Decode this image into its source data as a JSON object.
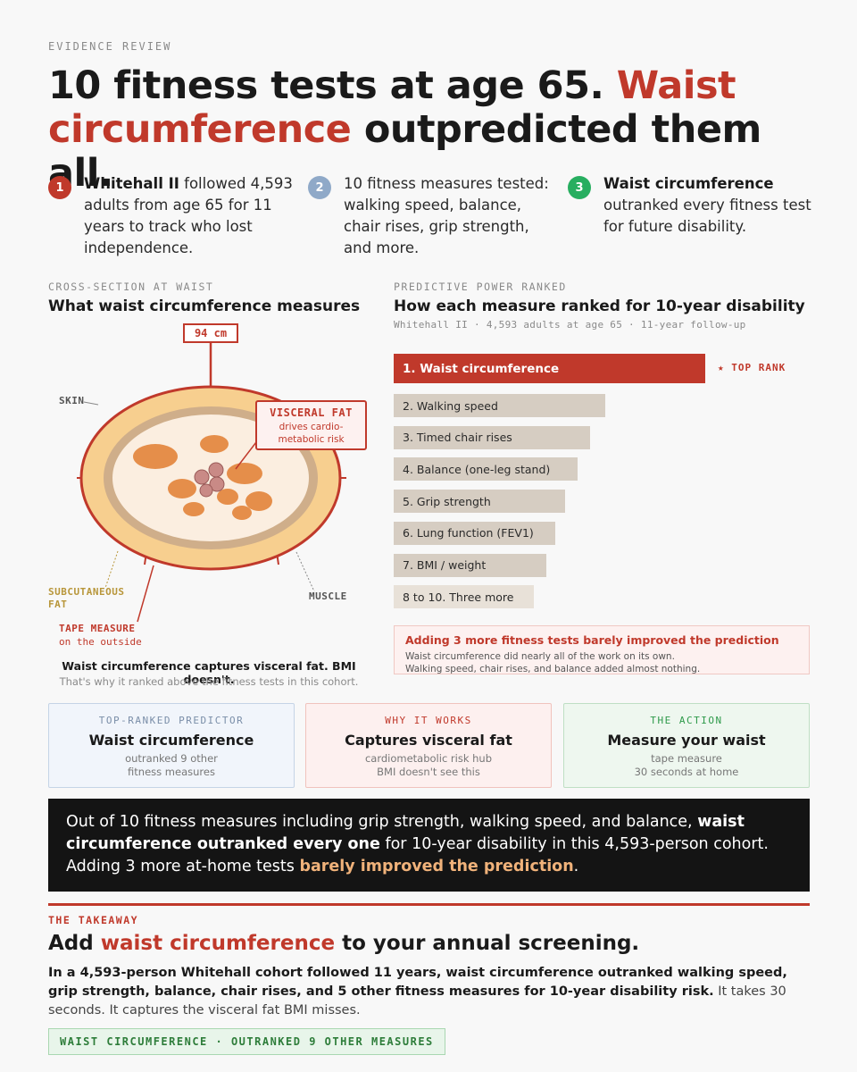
{
  "kicker": "EVIDENCE REVIEW",
  "headline": {
    "part1": "10 fitness tests at age 65. ",
    "red": "Waist circumference",
    "part2": " outpredicted them all."
  },
  "steps": [
    {
      "num": "1",
      "bold": "Whitehall II",
      "text": " followed 4,593 adults from age 65 for 11 years to track who lost independence.",
      "color": "#c0392b"
    },
    {
      "num": "2",
      "bold": "",
      "text": "10 fitness measures tested: walking speed, balance, chair rises, grip strength, and more.",
      "color": "#8fa9c8"
    },
    {
      "num": "3",
      "bold": "Waist circumference",
      "text": " outranked every fitness test for future disability.",
      "color": "#27ae60"
    }
  ],
  "diagram": {
    "kicker": "CROSS-SECTION AT WAIST",
    "title": "What waist circumference measures",
    "measure": "94 cm",
    "skin": "SKIN",
    "visceral_title": "VISCERAL FAT",
    "visceral_desc": "drives cardio-metabolic risk",
    "subcutaneous": "SUBCUTANEOUS FAT",
    "muscle": "MUSCLE",
    "tape": "TAPE MEASURE",
    "tape_sub": "on the outside",
    "caption": "Waist circumference captures visceral fat. BMI doesn't.",
    "caption_sub": "That's why it ranked above the fitness tests in this cohort."
  },
  "ranking": {
    "kicker": "PREDICTIVE POWER RANKED",
    "title": "How each measure ranked for 10-year disability",
    "subtitle": "Whitehall II · 4,593 adults at age 65 · 11-year follow-up",
    "top_rank": "TOP RANK"
  },
  "chart_data": {
    "type": "bar",
    "title": "How each measure ranked for 10-year disability",
    "categories": [
      "1. Waist circumference",
      "2. Walking speed",
      "3. Timed chair rises",
      "4. Balance (one-leg stand)",
      "5. Grip strength",
      "6. Lung function (FEV1)",
      "7. BMI / weight",
      "8 to 10. Three more"
    ],
    "values": [
      100,
      68,
      63,
      59,
      55,
      52,
      49,
      45
    ],
    "colors": [
      "#c0392b",
      "#d6cdc2",
      "#d6cdc2",
      "#d6cdc2",
      "#d6cdc2",
      "#d6cdc2",
      "#d6cdc2",
      "#e8e1d8"
    ],
    "orientation": "horizontal",
    "xlabel": "",
    "ylabel": ""
  },
  "note": {
    "title": "Adding 3 more fitness tests barely improved the prediction",
    "line1": "Waist circumference did nearly all of the work on its own.",
    "line2": "Walking speed, chair rises, and balance added almost nothing."
  },
  "cards": [
    {
      "kicker": "TOP-RANKED PREDICTOR",
      "title": "Waist circumference",
      "line1": "outranked 9 other",
      "line2": "fitness measures"
    },
    {
      "kicker": "WHY IT WORKS",
      "title": "Captures visceral fat",
      "line1": "cardiometabolic risk hub",
      "line2": "BMI doesn't see this"
    },
    {
      "kicker": "THE ACTION",
      "title": "Measure your waist",
      "line1": "tape measure",
      "line2": "30 seconds at home"
    }
  ],
  "summary": {
    "a": "Out of 10 fitness measures including grip strength, walking speed, and balance, ",
    "b": "waist circumference outranked every one",
    "c": " for 10-year disability in this 4,593-person cohort. Adding 3 more at-home tests ",
    "d": "barely improved the prediction",
    "e": "."
  },
  "takeaway": {
    "kicker": "THE TAKEAWAY",
    "h1": "Add ",
    "hred": "waist circumference",
    "h2": " to your annual screening.",
    "pbold": "In a 4,593-person Whitehall cohort followed 11 years, waist circumference outranked walking speed, grip strength, balance, chair rises, and 5 other fitness measures for 10-year disability risk.",
    "prest": " It takes 30 seconds. It captures the visceral fat BMI misses.",
    "badge": "WAIST CIRCUMFERENCE · OUTRANKED 9 OTHER MEASURES"
  }
}
